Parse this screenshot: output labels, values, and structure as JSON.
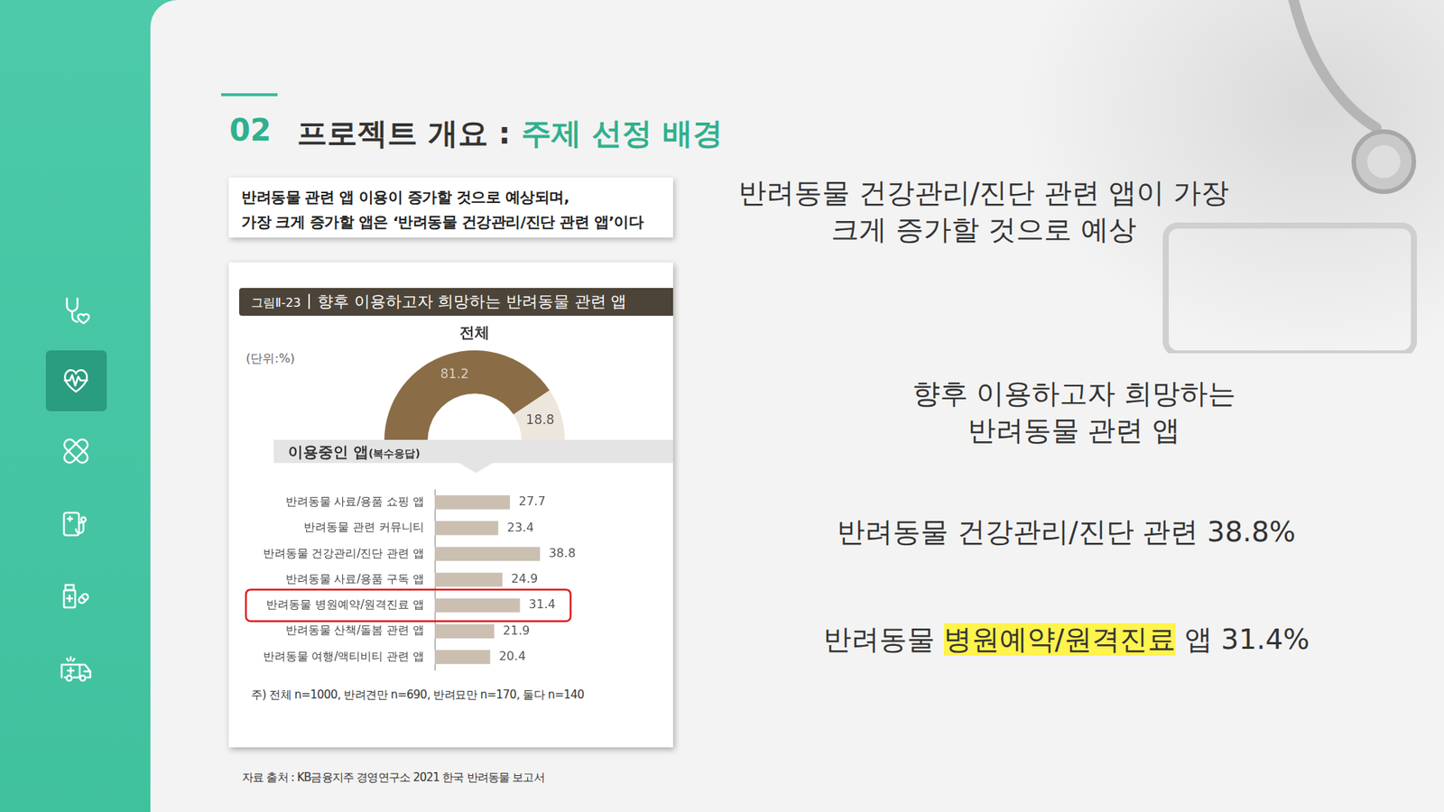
{
  "slide": {
    "section_number": "02",
    "heading": "프로젝트 개요 :",
    "heading_highlight": "주제 선정 배경",
    "summary_box": [
      "반려동물 관련 앱 이용이 증가할 것으로 예상되며,",
      "가장 크게 증가할 앱은 ‘반려동물 건강관리/진단 관련 앱’이다"
    ],
    "figure_label": "그림Ⅱ-23",
    "figure_title": "향후 이용하고자 희망하는 반려동물 관련 앱",
    "unit_note": "(단위:%)",
    "chart_note": "주) 전체 n=1000, 반려견만 n=690, 반려묘만 n=170, 둘다 n=140",
    "source": "자료 출처 : KB금융지주 경영연구소 2021 한국 반려동물 보고서",
    "key_message": [
      "반려동물 건강관리/진단 관련 앱이 가장",
      "크게 증가할 것으로 예상"
    ],
    "chart_caption": [
      "향후 이용하고자 희망하는",
      "반려동물 관련 앱"
    ],
    "point_1": "반려동물 건강관리/진단 관련 38.8%",
    "point_2": {
      "before": "반려동물 ",
      "highlight": "병원예약/원격진료",
      "after": " 앱 31.4%"
    }
  },
  "chart_data": [
    {
      "type": "doughnut",
      "title": "전체",
      "categories": [
        null,
        null
      ],
      "values": [
        81.2,
        18.8
      ],
      "colors": [
        "#8a6d47",
        "#ece6dd"
      ],
      "data_labels": true
    },
    {
      "type": "bar",
      "orientation": "horizontal",
      "subtitle": "이용중인 앱",
      "subtitle_note": "(복수응답)",
      "categories": [
        "반려동물 사료/용품 쇼핑 앱",
        "반려동물 관련 커뮤니티",
        "반려동물 건강관리/진단 관련 앱",
        "반려동물 사료/용품 구독 앱",
        "반려동물 병원예약/원격진료 앱",
        "반려동물 산책/돌봄 관련 앱",
        "반려동물 여행/액티비티 관련 앱"
      ],
      "values": [
        27.7,
        23.4,
        38.8,
        24.9,
        31.4,
        21.9,
        20.4
      ],
      "color": "#cbbfb1",
      "xlim": [
        0,
        60
      ],
      "grid": false,
      "data_labels": true,
      "tick_labels": "y"
    }
  ]
}
